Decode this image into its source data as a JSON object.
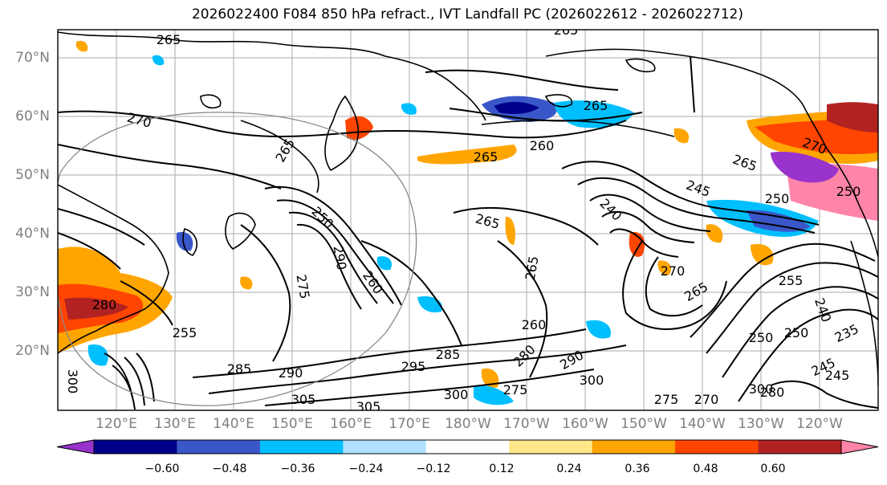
{
  "title": "2026022400 F084 850 hPa refract., IVT Landfall PC (2026022612 - 2026022712)",
  "lat_labels": [
    "70°N",
    "60°N",
    "50°N",
    "40°N",
    "30°N",
    "20°N"
  ],
  "lon_labels": [
    "120°E",
    "130°E",
    "140°E",
    "150°E",
    "160°E",
    "170°E",
    "180°W",
    "170°W",
    "160°W",
    "150°W",
    "140°W",
    "130°W",
    "120°W"
  ],
  "contour_labels": [
    "265",
    "265",
    "270",
    "265",
    "260",
    "265",
    "265",
    "270",
    "250",
    "240",
    "245",
    "250",
    "255",
    "260",
    "265",
    "270",
    "275",
    "280",
    "285",
    "290",
    "295",
    "300",
    "305",
    "305",
    "300",
    "285",
    "280",
    "290",
    "300",
    "275",
    "275",
    "270",
    "265",
    "260",
    "250",
    "250",
    "245",
    "245",
    "240",
    "235",
    "255",
    "300",
    "280",
    "290",
    "265",
    "250",
    "265"
  ],
  "colorbar": {
    "colors": [
      "#9933cc",
      "#00008b",
      "#3a57c9",
      "#00bfff",
      "#b0e2ff",
      "#ffffff",
      "#ffe88a",
      "#ffa500",
      "#ff4500",
      "#b22222",
      "#ff85a8"
    ],
    "tick_labels": [
      "−0.60",
      "−0.48",
      "−0.36",
      "−0.24",
      "−0.12",
      "0.12",
      "0.24",
      "0.36",
      "0.48",
      "0.60"
    ]
  }
}
